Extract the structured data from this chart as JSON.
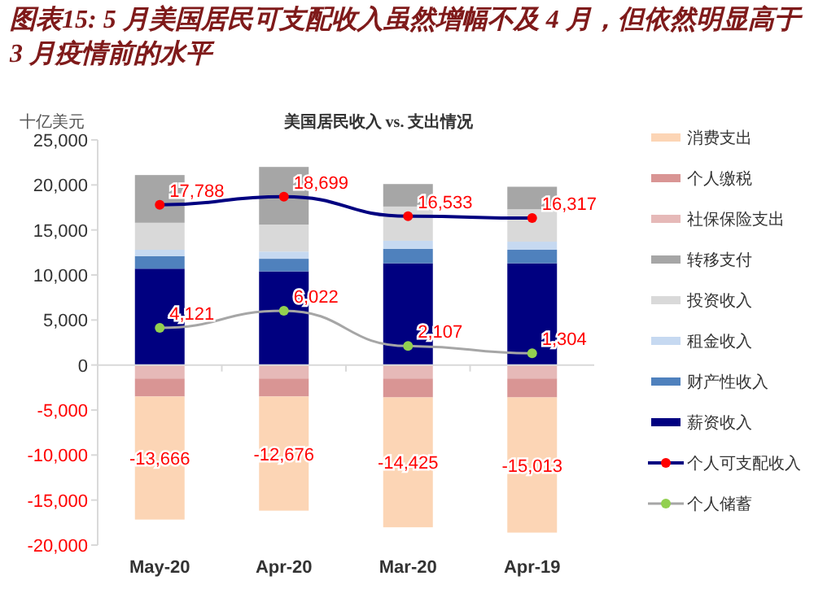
{
  "chart_data": {
    "type": "bar",
    "stacked": true,
    "title": "图表15: 5 月美国居民可支配收入虽然增幅不及 4 月，但依然明显高于 3 月疫情前的水平",
    "subtitle": "美国居民收入 vs. 支出情况",
    "ylabel": "十亿美元",
    "categories": [
      "May-20",
      "Apr-20",
      "Mar-20",
      "Apr-19"
    ],
    "ylim": [
      -20000,
      25000
    ],
    "yticks": [
      {
        "value": -20000,
        "label": "-20,000"
      },
      {
        "value": -15000,
        "label": "-15,000"
      },
      {
        "value": -10000,
        "label": "-10,000"
      },
      {
        "value": -5000,
        "label": "-5,000"
      },
      0,
      {
        "value": 5000,
        "label": "5,000"
      },
      {
        "value": 10000,
        "label": "10,000"
      },
      {
        "value": 15000,
        "label": "15,000"
      },
      {
        "value": 20000,
        "label": "20,000"
      },
      {
        "value": 25000,
        "label": "25,000"
      }
    ],
    "legend": "right",
    "series": [
      {
        "name": "薪资收入",
        "color": "#000080",
        "values": [
          10700,
          10400,
          11300,
          11300
        ]
      },
      {
        "name": "财产性收入",
        "color": "#4f81bd",
        "values": [
          1400,
          1400,
          1600,
          1500
        ]
      },
      {
        "name": "租金收入",
        "color": "#c6d9f1",
        "values": [
          700,
          800,
          900,
          900
        ]
      },
      {
        "name": "投资收入",
        "color": "#d9d9d9",
        "values": [
          3000,
          3000,
          3800,
          3600
        ]
      },
      {
        "name": "转移支付",
        "color": "#a6a6a6",
        "values": [
          5300,
          6400,
          2500,
          2500
        ]
      },
      {
        "name": "社保保险支出",
        "color": "#e6b9b8",
        "values": [
          -1500,
          -1500,
          -1500,
          -1500
        ]
      },
      {
        "name": "个人缴税",
        "color": "#d99594",
        "values": [
          -2000,
          -2000,
          -2100,
          -2100
        ]
      },
      {
        "name": "消费支出",
        "color": "#fcd5b5",
        "values": [
          -13666,
          -12676,
          -14425,
          -15013
        ],
        "value_labels": [
          "-13,666",
          "-12,676",
          "-14,425",
          "-15,013"
        ]
      },
      {
        "name": "个人可支配收入",
        "type": "line",
        "marker": "circle",
        "color": "#000080",
        "values": [
          17788,
          18699,
          16533,
          16317
        ],
        "value_labels": [
          "17,788",
          "18,699",
          "16,533",
          "16,317"
        ]
      },
      {
        "name": "个人储蓄",
        "type": "line",
        "marker": "circle",
        "color": "#a6a6a6",
        "values": [
          4121,
          6022,
          2107,
          1304
        ],
        "value_labels": [
          "4,121",
          "6,022",
          "2,107",
          "1,304"
        ]
      }
    ]
  }
}
